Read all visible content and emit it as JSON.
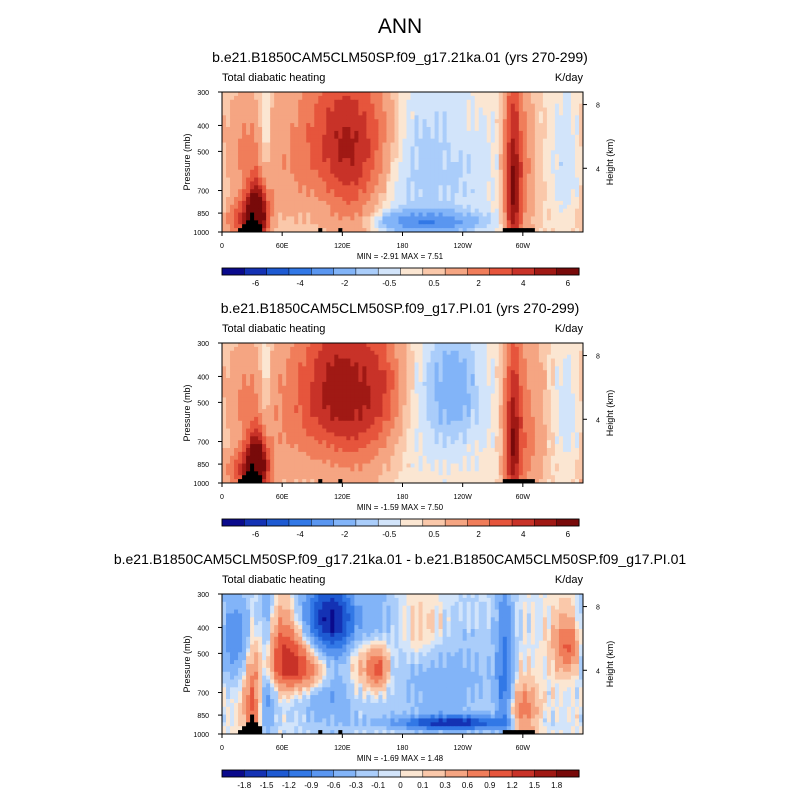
{
  "figure_title": "ANN",
  "colors": {
    "ground": "#000000",
    "frame": "#000000",
    "colormap": [
      "#0a0a8c",
      "#1432b4",
      "#1e5ad2",
      "#3278e6",
      "#5a96f0",
      "#82b4f8",
      "#aacdfa",
      "#d2e4fa",
      "#fbe6d2",
      "#fac8aa",
      "#f5a582",
      "#f07d5a",
      "#e6553c",
      "#c83228",
      "#a01914",
      "#780a0a"
    ]
  },
  "chart_data": [
    {
      "type": "heatmap",
      "name": "panel-21ka",
      "title": "b.e21.B1850CAM5CLM50SP.f09_g17.21ka.01 (yrs 270-299)",
      "left_label": "Total diabatic heating",
      "right_label": "K/day",
      "xlabel": "",
      "ylabel": "Pressure (mb)",
      "right_axis_label": "Height (km)",
      "x_ticks": [
        "0",
        "60E",
        "120E",
        "180",
        "120W",
        "60W"
      ],
      "y_ticks": [
        "300",
        "400",
        "500",
        "700",
        "850",
        "1000"
      ],
      "y_tick_values": [
        300,
        400,
        500,
        700,
        850,
        1000
      ],
      "height_ticks": [
        "8",
        "4"
      ],
      "height_tick_values": [
        8,
        4
      ],
      "xlim": [
        0,
        360
      ],
      "ylim": [
        1000,
        300
      ],
      "stats": "MIN = -2.91  MAX = 7.51",
      "min": -2.91,
      "max": 7.51,
      "levels": [
        -7,
        -6,
        -5,
        -4,
        -3,
        -2,
        -1,
        -0.5,
        0,
        0.5,
        1,
        2,
        3,
        4,
        5,
        6,
        7
      ],
      "colorbar_labels": [
        "-6",
        "-4",
        "-2",
        "-0.5",
        "0.5",
        "2",
        "4",
        "6"
      ],
      "features": [
        {
          "lon": 35,
          "p": 860,
          "w": 8,
          "h": 160,
          "amp": 7.5
        },
        {
          "lon": 20,
          "p": 900,
          "w": 12,
          "h": 120,
          "amp": 3.0
        },
        {
          "lon": 20,
          "p": 480,
          "w": 15,
          "h": 120,
          "amp": 1.5
        },
        {
          "lon": 43,
          "p": 500,
          "w": 5,
          "h": 200,
          "amp": -1.5
        },
        {
          "lon": 75,
          "p": 550,
          "w": 30,
          "h": 260,
          "amp": 1.5
        },
        {
          "lon": 110,
          "p": 430,
          "w": 20,
          "h": 180,
          "amp": 2.5
        },
        {
          "lon": 130,
          "p": 650,
          "w": 18,
          "h": 320,
          "amp": 2.5
        },
        {
          "lon": 150,
          "p": 450,
          "w": 18,
          "h": 180,
          "amp": 2.3
        },
        {
          "lon": 200,
          "p": 600,
          "w": 50,
          "h": 260,
          "amp": -1.2
        },
        {
          "lon": 205,
          "p": 920,
          "w": 38,
          "h": 60,
          "amp": -2.9
        },
        {
          "lon": 290,
          "p": 700,
          "w": 6,
          "h": 380,
          "amp": 5.0
        },
        {
          "lon": 300,
          "p": 650,
          "w": 10,
          "h": 300,
          "amp": 1.8
        },
        {
          "lon": 345,
          "p": 550,
          "w": 10,
          "h": 200,
          "amp": -1.0
        }
      ]
    },
    {
      "type": "heatmap",
      "name": "panel-pi",
      "title": "b.e21.B1850CAM5CLM50SP.f09_g17.PI.01 (yrs 270-299)",
      "left_label": "Total diabatic heating",
      "right_label": "K/day",
      "xlabel": "",
      "ylabel": "Pressure (mb)",
      "right_axis_label": "Height (km)",
      "x_ticks": [
        "0",
        "60E",
        "120E",
        "180",
        "120W",
        "60W"
      ],
      "y_ticks": [
        "300",
        "400",
        "500",
        "700",
        "850",
        "1000"
      ],
      "y_tick_values": [
        300,
        400,
        500,
        700,
        850,
        1000
      ],
      "height_ticks": [
        "8",
        "4"
      ],
      "height_tick_values": [
        8,
        4
      ],
      "xlim": [
        0,
        360
      ],
      "ylim": [
        1000,
        300
      ],
      "stats": "MIN = -1.59  MAX = 7.50",
      "min": -1.59,
      "max": 7.5,
      "levels": [
        -7,
        -6,
        -5,
        -4,
        -3,
        -2,
        -1,
        -0.5,
        0,
        0.5,
        1,
        2,
        3,
        4,
        5,
        6,
        7
      ],
      "colorbar_labels": [
        "-6",
        "-4",
        "-2",
        "-0.5",
        "0.5",
        "2",
        "4",
        "6"
      ],
      "features": [
        {
          "lon": 35,
          "p": 860,
          "w": 8,
          "h": 160,
          "amp": 7.5
        },
        {
          "lon": 20,
          "p": 900,
          "w": 12,
          "h": 120,
          "amp": 3.0
        },
        {
          "lon": 20,
          "p": 480,
          "w": 15,
          "h": 120,
          "amp": 1.5
        },
        {
          "lon": 43,
          "p": 500,
          "w": 5,
          "h": 200,
          "amp": -1.3
        },
        {
          "lon": 75,
          "p": 600,
          "w": 30,
          "h": 280,
          "amp": 1.5
        },
        {
          "lon": 110,
          "p": 420,
          "w": 25,
          "h": 180,
          "amp": 3.0
        },
        {
          "lon": 135,
          "p": 550,
          "w": 25,
          "h": 280,
          "amp": 2.8
        },
        {
          "lon": 160,
          "p": 430,
          "w": 15,
          "h": 160,
          "amp": 2.0
        },
        {
          "lon": 230,
          "p": 430,
          "w": 20,
          "h": 150,
          "amp": -1.5
        },
        {
          "lon": 220,
          "p": 640,
          "w": 40,
          "h": 250,
          "amp": -0.6
        },
        {
          "lon": 290,
          "p": 720,
          "w": 6,
          "h": 350,
          "amp": 5.0
        },
        {
          "lon": 305,
          "p": 650,
          "w": 12,
          "h": 300,
          "amp": 2.0
        },
        {
          "lon": 345,
          "p": 550,
          "w": 10,
          "h": 200,
          "amp": -0.8
        }
      ]
    },
    {
      "type": "heatmap",
      "name": "panel-diff",
      "title": "b.e21.B1850CAM5CLM50SP.f09_g17.21ka.01 - b.e21.B1850CAM5CLM50SP.f09_g17.PI.01",
      "left_label": "Total diabatic heating",
      "right_label": "K/day",
      "xlabel": "",
      "ylabel": "Pressure (mb)",
      "right_axis_label": "Height (km)",
      "x_ticks": [
        "0",
        "60E",
        "120E",
        "180",
        "120W",
        "60W"
      ],
      "y_ticks": [
        "300",
        "400",
        "500",
        "700",
        "850",
        "1000"
      ],
      "y_tick_values": [
        300,
        400,
        500,
        700,
        850,
        1000
      ],
      "height_ticks": [
        "8",
        "4"
      ],
      "height_tick_values": [
        8,
        4
      ],
      "xlim": [
        0,
        360
      ],
      "ylim": [
        1000,
        300
      ],
      "stats": "MIN = -1.69  MAX = 1.48",
      "min": -1.69,
      "max": 1.48,
      "levels": [
        -2.1,
        -1.8,
        -1.5,
        -1.2,
        -0.9,
        -0.6,
        -0.3,
        -0.1,
        0,
        0.1,
        0.3,
        0.6,
        0.9,
        1.2,
        1.5,
        1.8,
        2.1
      ],
      "colorbar_labels": [
        "-1.8",
        "-1.5",
        "-1.2",
        "-0.9",
        "-0.6",
        "-0.3",
        "-0.1",
        "0",
        "0.1",
        "0.3",
        "0.6",
        "0.9",
        "1.2",
        "1.5",
        "1.8"
      ],
      "features": [
        {
          "lon": 12,
          "p": 450,
          "w": 12,
          "h": 120,
          "amp": -0.9
        },
        {
          "lon": 30,
          "p": 800,
          "w": 6,
          "h": 180,
          "amp": 1.0
        },
        {
          "lon": 45,
          "p": 550,
          "w": 6,
          "h": 350,
          "amp": -0.8
        },
        {
          "lon": 65,
          "p": 430,
          "w": 18,
          "h": 100,
          "amp": 1.2
        },
        {
          "lon": 75,
          "p": 580,
          "w": 25,
          "h": 80,
          "amp": 1.2
        },
        {
          "lon": 110,
          "p": 370,
          "w": 30,
          "h": 80,
          "amp": -1.5
        },
        {
          "lon": 110,
          "p": 600,
          "w": 25,
          "h": 250,
          "amp": -0.7
        },
        {
          "lon": 135,
          "p": 450,
          "w": 10,
          "h": 200,
          "amp": 0.7
        },
        {
          "lon": 155,
          "p": 570,
          "w": 8,
          "h": 80,
          "amp": 1.2
        },
        {
          "lon": 220,
          "p": 620,
          "w": 40,
          "h": 200,
          "amp": -0.5
        },
        {
          "lon": 230,
          "p": 910,
          "w": 40,
          "h": 40,
          "amp": -1.6
        },
        {
          "lon": 200,
          "p": 420,
          "w": 20,
          "h": 100,
          "amp": 0.4
        },
        {
          "lon": 282,
          "p": 600,
          "w": 6,
          "h": 300,
          "amp": -1.0
        },
        {
          "lon": 300,
          "p": 850,
          "w": 10,
          "h": 150,
          "amp": 0.9
        },
        {
          "lon": 345,
          "p": 470,
          "w": 10,
          "h": 80,
          "amp": 1.0
        }
      ]
    }
  ]
}
